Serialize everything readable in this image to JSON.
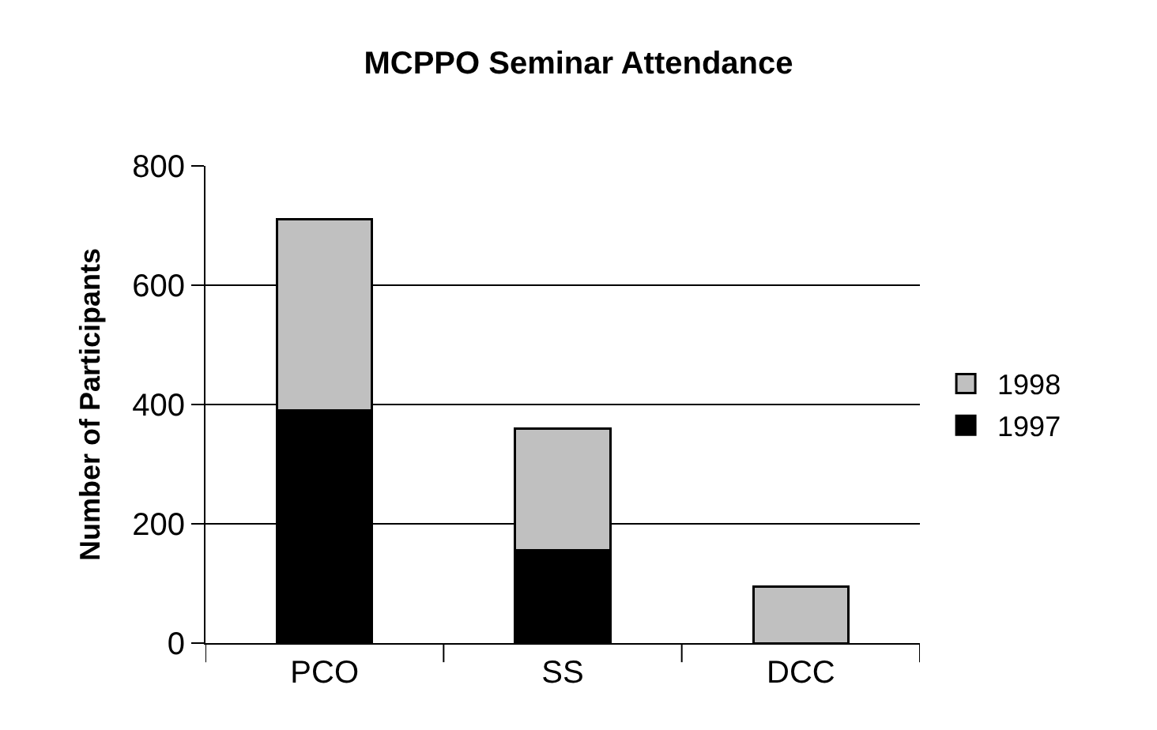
{
  "chart_data": {
    "type": "bar",
    "title": "MCPPO Seminar Attendance",
    "ylabel": "Number of Participants",
    "categories": [
      "PCO",
      "SS",
      "DCC"
    ],
    "stacked": true,
    "series": [
      {
        "name": "1997",
        "color": "#000000",
        "values": [
          390,
          155,
          0
        ]
      },
      {
        "name": "1998",
        "color": "#c0c0c0",
        "values": [
          320,
          205,
          95
        ]
      }
    ],
    "ylim": [
      0,
      800
    ],
    "yticks": [
      0,
      200,
      400,
      600,
      800
    ],
    "grid": "y",
    "legend": "right"
  }
}
